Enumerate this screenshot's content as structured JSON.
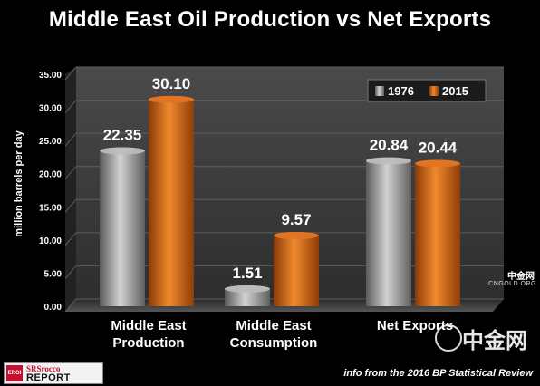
{
  "chart_data": {
    "type": "bar",
    "title": "Middle East Oil Production vs Net Exports",
    "ylabel": "million barrels per day",
    "ylim": [
      0,
      35
    ],
    "yticks": [
      "0.00",
      "5.00",
      "10.00",
      "15.00",
      "20.00",
      "25.00",
      "30.00",
      "35.00"
    ],
    "categories": [
      [
        "Middle East",
        "Production"
      ],
      [
        "Middle East",
        "Consumption"
      ],
      [
        "Net Exports"
      ]
    ],
    "series": [
      {
        "name": "1976",
        "values": [
          22.35,
          1.51,
          20.84
        ],
        "labels": [
          "22.35",
          "1.51",
          "20.84"
        ],
        "color": "#9a9a9a"
      },
      {
        "name": "2015",
        "values": [
          30.1,
          9.57,
          20.44
        ],
        "labels": [
          "30.10",
          "9.57",
          "20.44"
        ],
        "color": "#d4620e"
      }
    ],
    "legend_position": "top-right",
    "grid": true
  },
  "source": "info from the 2016 BP Statistical Review",
  "logo": {
    "badge": "EROI",
    "line1": "SRSrocco",
    "line2": "REPORT"
  },
  "watermark": {
    "main": "中金网",
    "sub_title": "中金网",
    "sub_url": "CNGOLD.ORG"
  },
  "colors": {
    "background": "#000000",
    "plot_wall": "#3c3c3c",
    "series_1976": "#9a9a9a",
    "series_2015": "#d4620e"
  }
}
